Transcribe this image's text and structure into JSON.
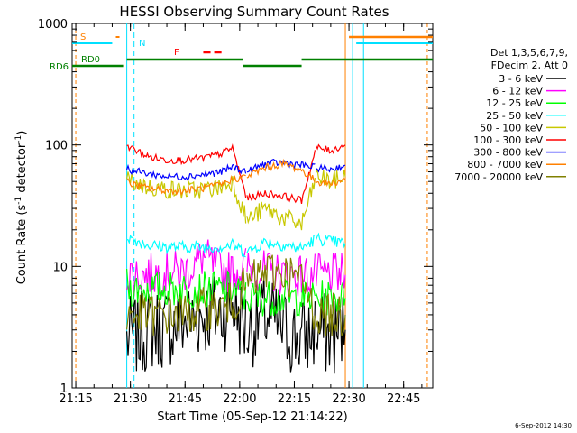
{
  "chart_data": {
    "type": "line",
    "title": "HESSI Observing Summary Count Rates",
    "xlabel": "Start Time (05-Sep-12 21:14:22)",
    "ylabel_main": "Count Rate (s",
    "ylabel_sup1": "-1",
    "ylabel_mid": " detector",
    "ylabel_sup2": "-1",
    "ylabel_end": ")",
    "yscale": "log",
    "ylim": [
      1,
      1000
    ],
    "xlim": [
      "21:14",
      "22:53"
    ],
    "x_ticks": [
      "21:15",
      "21:30",
      "21:45",
      "22:00",
      "22:15",
      "22:30",
      "22:45"
    ],
    "y_ticks": [
      "1",
      "10",
      "100",
      "1000"
    ],
    "legend_header": [
      "Det 1,3,5,6,7,9,",
      "FDecim 2, Att 0"
    ],
    "legend_position": "right",
    "footer_date": "6-Sep-2012 14:30",
    "flags": [
      {
        "label": "S",
        "color": "#ff8000"
      },
      {
        "label": "N",
        "color": "#00e0ff"
      },
      {
        "label": "F",
        "color": "#ff0000"
      },
      {
        "label": "RD0",
        "color": "#008000"
      },
      {
        "label": "RD6",
        "color": "#008000"
      }
    ],
    "series": [
      {
        "name": "3 - 6 keV",
        "color": "#000000",
        "x": [
          "21:29",
          "21:30",
          "21:35",
          "21:40",
          "21:45",
          "21:50",
          "21:55",
          "21:58",
          "22:02",
          "22:07",
          "22:12",
          "22:17",
          "22:21",
          "22:25",
          "22:29"
        ],
        "values": [
          2.5,
          2.6,
          3.0,
          3.2,
          3.5,
          4.0,
          4.2,
          5.0,
          3.0,
          4.0,
          3.0,
          2.5,
          3.0,
          2.6,
          3.0
        ]
      },
      {
        "name": "6 - 12 keV",
        "color": "#ff00ff",
        "x": [
          "21:29",
          "21:30",
          "21:35",
          "21:40",
          "21:45",
          "21:50",
          "21:55",
          "21:58",
          "22:02",
          "22:07",
          "22:12",
          "22:17",
          "22:21",
          "22:25",
          "22:29"
        ],
        "values": [
          9.0,
          8.5,
          8.5,
          9.0,
          9.0,
          12.0,
          9.0,
          9.0,
          10.0,
          9.0,
          8.5,
          8.5,
          8.5,
          8.5,
          8.5
        ]
      },
      {
        "name": "12 - 25 keV",
        "color": "#00ff00",
        "x": [
          "21:29",
          "21:30",
          "21:35",
          "21:40",
          "21:45",
          "21:50",
          "21:55",
          "21:58",
          "22:02",
          "22:07",
          "22:12",
          "22:17",
          "22:21",
          "22:25",
          "22:29"
        ],
        "values": [
          7.0,
          6.5,
          6.5,
          6.5,
          6.5,
          6.5,
          6.5,
          6.5,
          5.5,
          5.5,
          5.5,
          5.5,
          5.5,
          5.5,
          5.5
        ]
      },
      {
        "name": "25 - 50 keV",
        "color": "#00ffff",
        "x": [
          "21:29",
          "21:30",
          "21:35",
          "21:40",
          "21:45",
          "21:50",
          "21:55",
          "21:58",
          "22:02",
          "22:07",
          "22:12",
          "22:17",
          "22:21",
          "22:25",
          "22:29"
        ],
        "values": [
          18.0,
          17.0,
          15.0,
          14.5,
          14.5,
          14.5,
          14.5,
          15.0,
          13.0,
          16.0,
          15.0,
          14.0,
          17.0,
          16.0,
          15.5
        ]
      },
      {
        "name": "50 - 100 keV",
        "color": "#c8c800",
        "x": [
          "21:29",
          "21:30",
          "21:35",
          "21:40",
          "21:45",
          "21:50",
          "21:55",
          "21:58",
          "22:02",
          "22:07",
          "22:12",
          "22:17",
          "22:21",
          "22:25",
          "22:29"
        ],
        "values": [
          55.0,
          50.0,
          45.0,
          43.0,
          42.0,
          43.0,
          45.0,
          50.0,
          24.0,
          30.0,
          25.0,
          22.0,
          55.0,
          50.0,
          55.0
        ]
      },
      {
        "name": "100 - 300 keV",
        "color": "#ff0000",
        "x": [
          "21:29",
          "21:30",
          "21:35",
          "21:40",
          "21:45",
          "21:50",
          "21:55",
          "21:58",
          "22:02",
          "22:07",
          "22:12",
          "22:17",
          "22:21",
          "22:25",
          "22:29"
        ],
        "values": [
          100.0,
          95.0,
          80.0,
          75.0,
          75.0,
          78.0,
          85.0,
          95.0,
          36.0,
          40.0,
          38.0,
          35.0,
          95.0,
          90.0,
          100.0
        ]
      },
      {
        "name": "300 - 800 keV",
        "color": "#0000ff",
        "x": [
          "21:29",
          "21:30",
          "21:35",
          "21:40",
          "21:45",
          "21:50",
          "21:55",
          "21:58",
          "22:02",
          "22:07",
          "22:12",
          "22:17",
          "22:21",
          "22:25",
          "22:29"
        ],
        "values": [
          65.0,
          62.0,
          58.0,
          55.0,
          55.0,
          57.0,
          60.0,
          66.0,
          60.0,
          70.0,
          72.0,
          68.0,
          65.0,
          63.0,
          68.0
        ]
      },
      {
        "name": "800 - 7000 keV",
        "color": "#ff8000",
        "x": [
          "21:29",
          "21:30",
          "21:35",
          "21:40",
          "21:45",
          "21:50",
          "21:55",
          "21:58",
          "22:02",
          "22:07",
          "22:12",
          "22:17",
          "22:21",
          "22:25",
          "22:29"
        ],
        "values": [
          50.0,
          48.0,
          44.0,
          42.0,
          42.0,
          44.0,
          47.0,
          52.0,
          55.0,
          65.0,
          70.0,
          62.0,
          50.0,
          48.0,
          52.0
        ]
      },
      {
        "name": "7000 - 20000 keV",
        "color": "#808000",
        "x": [
          "21:29",
          "21:30",
          "21:35",
          "21:40",
          "21:45",
          "21:50",
          "21:55",
          "21:58",
          "22:02",
          "22:07",
          "22:12",
          "22:17",
          "22:21",
          "22:25",
          "22:29"
        ],
        "values": [
          4.0,
          4.0,
          4.0,
          4.0,
          4.0,
          4.5,
          4.5,
          5.0,
          7.0,
          9.0,
          9.0,
          7.5,
          4.0,
          4.0,
          4.0
        ]
      }
    ]
  }
}
